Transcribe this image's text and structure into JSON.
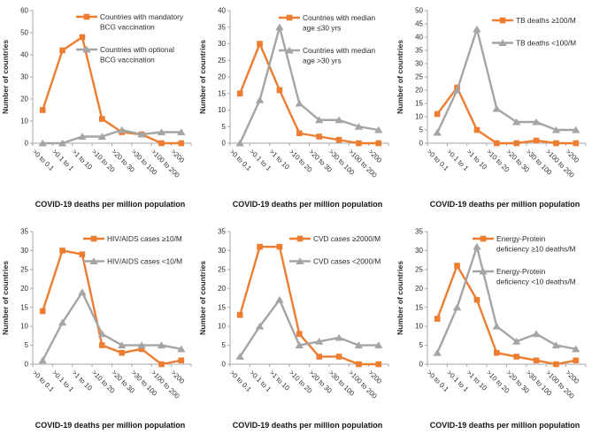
{
  "shared": {
    "xlabel": "COVID-19 deaths per million population",
    "ylabel": "Number of countries",
    "categories": [
      ">0 to 0.1",
      ">0.1 to 1",
      ">1 to 10",
      ">10 to 20",
      ">20 to 30",
      ">30 to 100",
      ">100 to 200",
      ">200"
    ],
    "colors": {
      "orange": "#ED7D31",
      "gray": "#A5A5A5",
      "axis": "#A6A6A6",
      "text": "#2B2B2B"
    }
  },
  "chart_data": [
    {
      "id": "bcg-vaccination",
      "type": "line",
      "categories": [
        ">0 to 0.1",
        ">0.1 to 1",
        ">1 to 10",
        ">10 to 20",
        ">20 to 30",
        ">30 to 100",
        ">100 to 200",
        ">200"
      ],
      "xlabel": "COVID-19 deaths per million population",
      "ylabel": "Number of countries",
      "ylim": [
        0,
        60
      ],
      "ytick": 10,
      "grid": false,
      "legend_position": "top-right-inside",
      "legend_x": 86,
      "legend_y": 22,
      "series": [
        {
          "name": "Countries with mandatory BCG vaccination",
          "legend_lines": [
            "Countries with mandatory",
            "BCG vaccination"
          ],
          "marker": "square",
          "color": "#ED7D31",
          "values": [
            15,
            42,
            48,
            11,
            5,
            4,
            0,
            0
          ]
        },
        {
          "name": "Countries with optional BCG vaccination",
          "legend_lines": [
            "Countries with optional",
            "BCG vaccination"
          ],
          "marker": "triangle",
          "color": "#A5A5A5",
          "values": [
            0,
            0,
            3,
            3,
            6,
            4,
            5,
            5
          ]
        }
      ]
    },
    {
      "id": "median-age",
      "type": "line",
      "categories": [
        ">0 to 0.1",
        ">0.1 to 1",
        ">1 to 10",
        ">10 to 20",
        ">20 to 30",
        ">30 to 100",
        ">100 to 200",
        ">200"
      ],
      "xlabel": "COVID-19 deaths per million population",
      "ylabel": "Number of countries",
      "ylim": [
        0,
        40
      ],
      "ytick": 5,
      "grid": false,
      "legend_position": "top-right-inside",
      "legend_x": 92,
      "legend_y": 23,
      "series": [
        {
          "name": "Countries with median age ≤30 yrs",
          "legend_lines": [
            "Countries with median",
            "age ≤30 yrs"
          ],
          "marker": "square",
          "color": "#ED7D31",
          "values": [
            15,
            30,
            16,
            3,
            2,
            1,
            0,
            0
          ]
        },
        {
          "name": "Countries with median age >30 yrs",
          "legend_lines": [
            "Countries with median",
            "age >30 yrs"
          ],
          "marker": "triangle",
          "color": "#A5A5A5",
          "values": [
            0,
            13,
            35,
            12,
            7,
            7,
            5,
            4
          ]
        }
      ]
    },
    {
      "id": "tb-deaths",
      "type": "line",
      "categories": [
        ">0 to 0.1",
        ">0.1 to 1",
        ">1 to 10",
        ">10 to 20",
        ">20 to 30",
        ">30 to 100",
        ">100 to 200",
        ">200"
      ],
      "xlabel": "COVID-19 deaths per million population",
      "ylabel": "Number of countries",
      "ylim": [
        0,
        50
      ],
      "ytick": 5,
      "grid": false,
      "legend_position": "top-right-inside",
      "legend_x": 110,
      "legend_y": 26,
      "series": [
        {
          "name": "TB deaths ≥100/M",
          "legend_lines": [
            "TB deaths ≥100/M"
          ],
          "marker": "square",
          "color": "#ED7D31",
          "values": [
            11,
            21,
            5,
            0,
            0,
            1,
            0,
            0
          ]
        },
        {
          "name": "TB deaths <100/M",
          "legend_lines": [
            "TB deaths <100/M"
          ],
          "marker": "triangle",
          "color": "#A5A5A5",
          "values": [
            4,
            20,
            43,
            13,
            8,
            8,
            5,
            5
          ]
        }
      ]
    },
    {
      "id": "hiv-aids",
      "type": "line",
      "categories": [
        ">0 to 0.1",
        ">0.1 to 1",
        ">1 to 10",
        ">10 to 20",
        ">20 to 30",
        ">30 to 100",
        ">100 to 200",
        ">200"
      ],
      "xlabel": "COVID-19 deaths per million population",
      "ylabel": "Number of countries",
      "ylim": [
        0,
        35
      ],
      "ytick": 5,
      "grid": false,
      "legend_position": "top-right-inside",
      "legend_x": 94,
      "legend_y": 23,
      "series": [
        {
          "name": "HIV/AIDS cases ≥10/M",
          "legend_lines": [
            "HIV/AIDS cases ≥10/M"
          ],
          "marker": "square",
          "color": "#ED7D31",
          "values": [
            14,
            30,
            29,
            5,
            3,
            4,
            0,
            1
          ]
        },
        {
          "name": "HIV/AIDS cases <10/M",
          "legend_lines": [
            "HIV/AIDS cases <10/M"
          ],
          "marker": "triangle",
          "color": "#A5A5A5",
          "values": [
            1,
            11,
            19,
            8,
            5,
            5,
            5,
            4
          ]
        }
      ]
    },
    {
      "id": "cvd",
      "type": "line",
      "categories": [
        ">0 to 0.1",
        ">0.1 to 1",
        ">1 to 10",
        ">10 to 20",
        ">20 to 30",
        ">30 to 100",
        ">100 to 200",
        ">200"
      ],
      "xlabel": "COVID-19 deaths per million population",
      "ylabel": "Number of countries",
      "ylim": [
        0,
        35
      ],
      "ytick": 5,
      "grid": false,
      "legend_position": "top-right-inside",
      "legend_x": 104,
      "legend_y": 23,
      "series": [
        {
          "name": "CVD cases ≥2000/M",
          "legend_lines": [
            "CVD cases ≥2000/M"
          ],
          "marker": "square",
          "color": "#ED7D31",
          "values": [
            13,
            31,
            31,
            8,
            2,
            2,
            0,
            0
          ]
        },
        {
          "name": "CVD cases <2000/M",
          "legend_lines": [
            "CVD cases <2000/M"
          ],
          "marker": "triangle",
          "color": "#A5A5A5",
          "values": [
            2,
            10,
            17,
            5,
            6,
            7,
            5,
            5
          ]
        }
      ]
    },
    {
      "id": "energy-protein",
      "type": "line",
      "categories": [
        ">0 to 0.1",
        ">0.1 to 1",
        ">1 to 10",
        ">10 to 20",
        ">20 to 30",
        ">30 to 100",
        ">100 to 200",
        ">200"
      ],
      "xlabel": "COVID-19 deaths per million population",
      "ylabel": "Number of countries",
      "ylim": [
        0,
        35
      ],
      "ytick": 5,
      "grid": false,
      "legend_position": "top-right-inside",
      "legend_x": 88,
      "legend_y": 23,
      "series": [
        {
          "name": "Energy-Protein deficiency ≥10 deaths/M",
          "legend_lines": [
            "Energy-Protein",
            "deficiency ≥10 deaths/M"
          ],
          "marker": "square",
          "color": "#ED7D31",
          "values": [
            12,
            26,
            17,
            3,
            2,
            1,
            0,
            1
          ]
        },
        {
          "name": "Energy-Protein deficiency <10 deaths/M",
          "legend_lines": [
            "Energy-Protein",
            "deficiency <10 deaths/M"
          ],
          "marker": "triangle",
          "color": "#A5A5A5",
          "values": [
            3,
            15,
            31,
            10,
            6,
            8,
            5,
            4
          ]
        }
      ]
    }
  ]
}
